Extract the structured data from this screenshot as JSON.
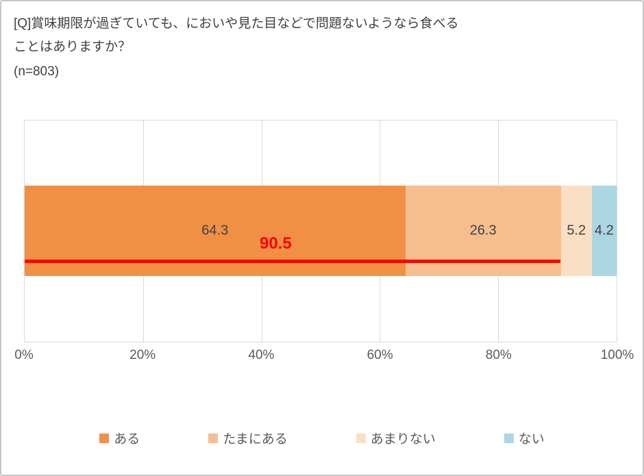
{
  "header": {
    "title_line1": "[Q]賞味期限が過ぎていても、においや見た目などで問題ないようなら食べる",
    "title_line2": "ことはありますか？",
    "sample_size": "(n=803)"
  },
  "chart_data": {
    "type": "bar",
    "orientation": "horizontal_stacked",
    "title": "[Q]賞味期限が過ぎていても、においや見た目などで問題ないようなら食べることはありますか？",
    "sample_n": 803,
    "series": [
      {
        "name": "ある",
        "value": 64.3,
        "color": "#F19045"
      },
      {
        "name": "たまにある",
        "value": 26.3,
        "color": "#F6BE8F"
      },
      {
        "name": "あまりない",
        "value": 5.2,
        "color": "#FBDFC5"
      },
      {
        "name": "ない",
        "value": 4.2,
        "color": "#ABD7E4"
      }
    ],
    "annotation": {
      "label": "90.5",
      "value": 90.5,
      "color": "#FF0000"
    },
    "x_ticks": [
      "0%",
      "20%",
      "40%",
      "60%",
      "80%",
      "100%"
    ],
    "xlim": [
      0,
      100
    ],
    "grid": true,
    "legend_position": "bottom"
  }
}
